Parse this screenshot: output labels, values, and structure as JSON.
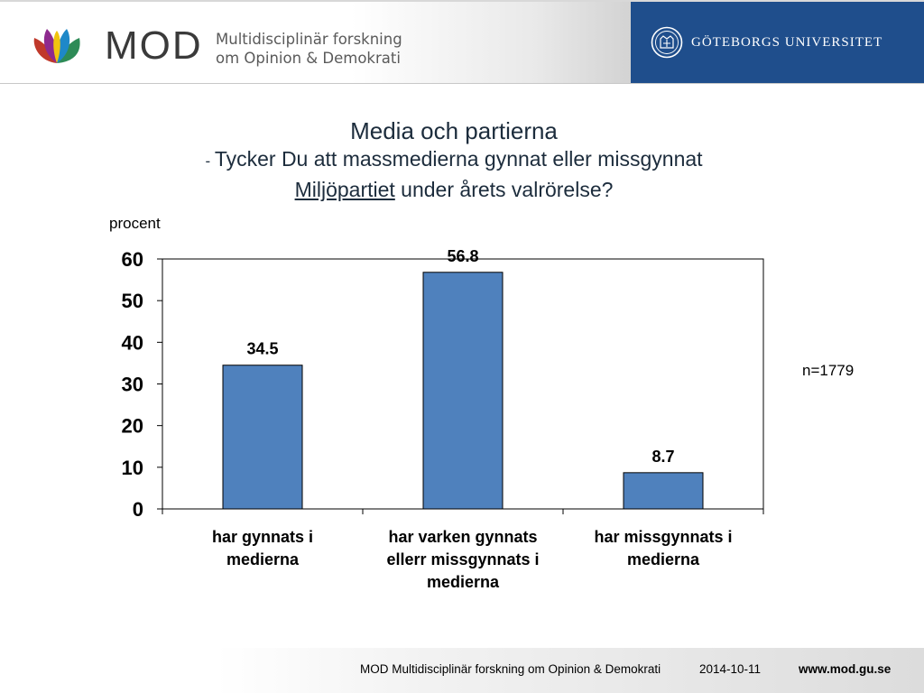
{
  "header": {
    "logo_text": "MOD",
    "logo_sub_line1": "Multidisciplinär forskning",
    "logo_sub_line2": "om Opinion & Demokrati",
    "university": "GÖTEBORGS UNIVERSITET",
    "colors": {
      "university_blue": "#1f4e8c"
    }
  },
  "title": {
    "line1": "Media och partierna",
    "line2_prefix": "- ",
    "line2": "Tycker Du att massmedierna gynnat eller missgynnat",
    "line3_underlined": "Miljöpartiet",
    "line3_rest": " under årets valrörelse?"
  },
  "ylabel": "procent",
  "n_label": "n=1779",
  "chart_data": {
    "type": "bar",
    "categories": [
      "har gynnats i medierna",
      "har varken gynnats ellerr missgynnats i medierna",
      "har missgynnats i medierna"
    ],
    "category_lines": [
      [
        "har gynnats i",
        "medierna"
      ],
      [
        "har varken gynnats",
        "ellerr missgynnats i",
        "medierna"
      ],
      [
        "har missgynnats i",
        "medierna"
      ]
    ],
    "values": [
      34.5,
      56.8,
      8.7
    ],
    "data_labels": [
      "34.5",
      "56.8",
      "8.7"
    ],
    "ylim": [
      0,
      60
    ],
    "yticks": [
      0,
      10,
      20,
      30,
      40,
      50,
      60
    ],
    "ylabel": "procent",
    "bar_color": "#4f81bd",
    "grid": false,
    "legend": "none"
  },
  "footer": {
    "org": "MOD Multidisciplinär forskning om Opinion & Demokrati",
    "date": "2014-10-11",
    "url": "www.mod.gu.se"
  }
}
